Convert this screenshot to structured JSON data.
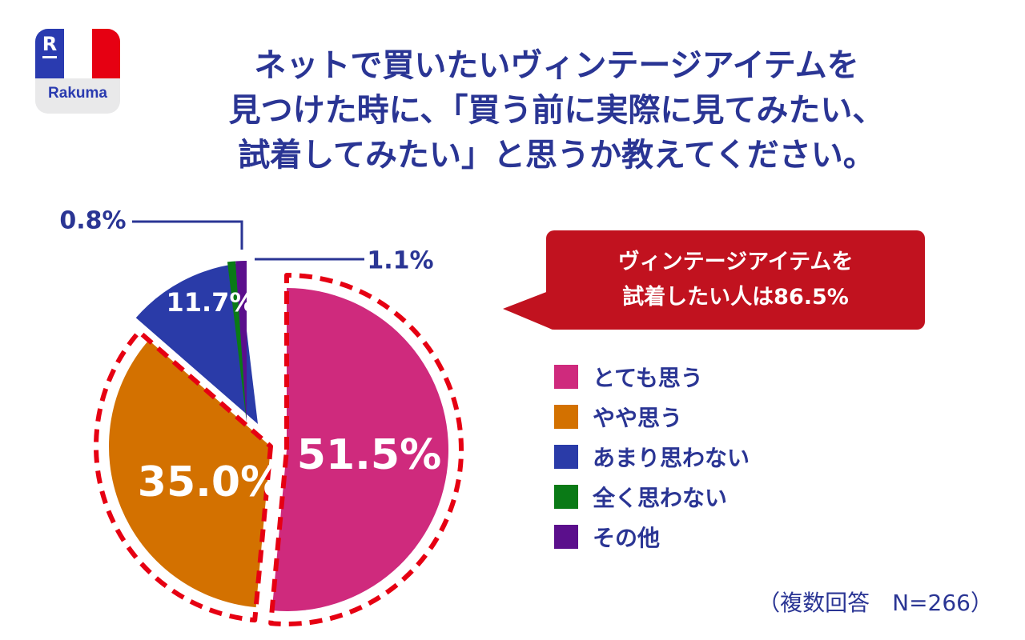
{
  "logo": {
    "text": "Rakuma",
    "mark": "R"
  },
  "title_lines": [
    "ネットで買いたいヴィンテージアイテムを",
    "見つけた時に、「買う前に実際に見てみたい、",
    "試着してみたい」と思うか教えてください。"
  ],
  "callout": {
    "lines": [
      "ヴィンテージアイテムを",
      "試着したい人は86.5%"
    ],
    "color": "#c1121f"
  },
  "footnote": "（複数回答　N=266）",
  "chart_data": {
    "type": "pie",
    "title": "",
    "slices": [
      {
        "label": "とても思う",
        "value": 51.5,
        "display": "51.5%",
        "color": "#cf2a7d"
      },
      {
        "label": "やや思う",
        "value": 35.0,
        "display": "35.0%",
        "color": "#d37100"
      },
      {
        "label": "あまり思わない",
        "value": 11.7,
        "display": "11.7%",
        "color": "#2a3ba8"
      },
      {
        "label": "全く思わない",
        "value": 0.8,
        "display": "0.8%",
        "color": "#0a7a16"
      },
      {
        "label": "その他",
        "value": 1.1,
        "display": "1.1%",
        "color": "#5b0f8c"
      }
    ],
    "legend_position": "right",
    "highlight": "dashed outline around とても思う and やや思う"
  }
}
